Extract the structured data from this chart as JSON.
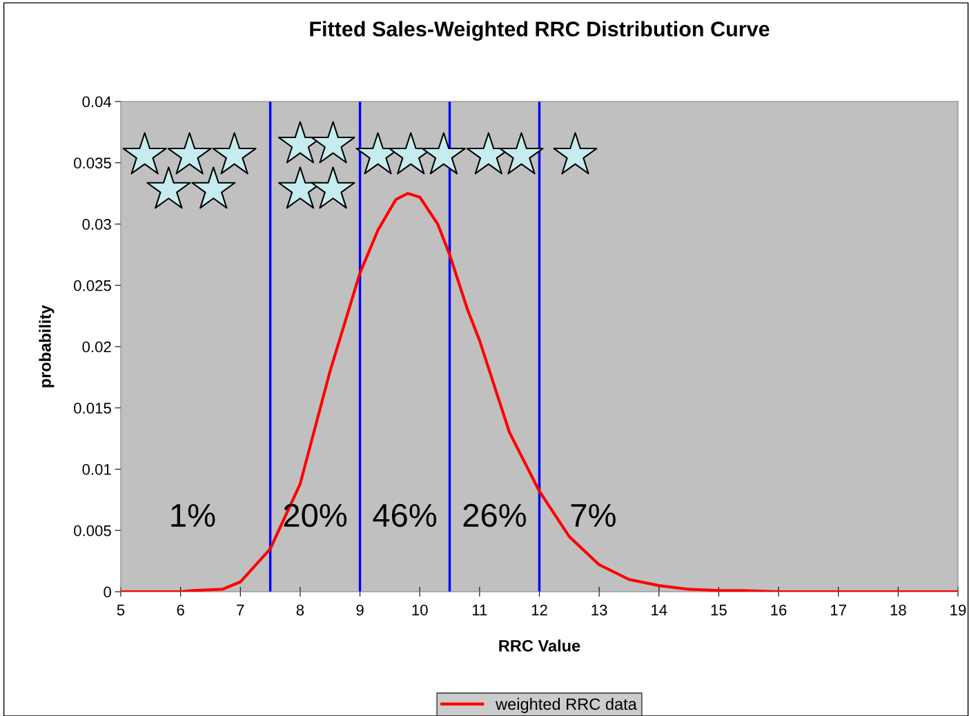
{
  "chart_data": {
    "type": "line",
    "title": "Fitted Sales-Weighted RRC Distribution Curve",
    "xlabel": "RRC Value",
    "ylabel": "probability",
    "xlim": [
      5,
      19
    ],
    "xticks": [
      5,
      6,
      7,
      8,
      9,
      10,
      11,
      12,
      13,
      14,
      15,
      16,
      17,
      18,
      19
    ],
    "ylim": [
      0,
      0.04
    ],
    "yticks": [
      0,
      0.005,
      0.01,
      0.015,
      0.02,
      0.025,
      0.03,
      0.035,
      0.04
    ],
    "grid": false,
    "legend": "bottom",
    "marker": "none",
    "line_style": "solid",
    "series": [
      {
        "name": "weighted RRC data",
        "color": "#ff0000",
        "x": [
          5,
          6,
          6.2,
          6.7,
          7.0,
          7.5,
          8.0,
          8.5,
          9.0,
          9.3,
          9.6,
          9.8,
          10.0,
          10.3,
          10.5,
          10.8,
          11.0,
          11.5,
          12.0,
          12.5,
          13.0,
          13.5,
          14.0,
          14.5,
          15.0,
          15.4,
          16,
          19
        ],
        "values": [
          0,
          0,
          0.0001,
          0.0002,
          0.0008,
          0.0035,
          0.0088,
          0.018,
          0.026,
          0.0295,
          0.032,
          0.0325,
          0.0322,
          0.03,
          0.0275,
          0.023,
          0.0205,
          0.013,
          0.0082,
          0.0045,
          0.0022,
          0.001,
          0.0005,
          0.0002,
          0.0001,
          0.0001,
          0,
          0
        ]
      },
      {
        "type": "scatter",
        "marker": "star",
        "color": "#c6ecf0",
        "x": [
          5.4,
          6.15,
          6.9,
          5.8,
          6.55,
          8.0,
          8.55,
          8.0,
          8.55,
          9.3,
          9.85,
          10.4,
          11.15,
          11.7,
          12.6
        ],
        "values": [
          0.0356,
          0.0356,
          0.0356,
          0.0328,
          0.0328,
          0.0365,
          0.0365,
          0.0328,
          0.0328,
          0.0356,
          0.0356,
          0.0356,
          0.0356,
          0.0356,
          0.0356
        ]
      }
    ],
    "ref_lines": [
      {
        "axis": "x",
        "value": 7.5,
        "color": "#0000ff"
      },
      {
        "axis": "x",
        "value": 9,
        "color": "#0000ff"
      },
      {
        "axis": "x",
        "value": 10.5,
        "color": "#0000ff"
      },
      {
        "axis": "x",
        "value": 12,
        "color": "#0000ff"
      }
    ],
    "annotations": [
      "1%",
      "20%",
      "46%",
      "26%",
      "7%"
    ]
  }
}
